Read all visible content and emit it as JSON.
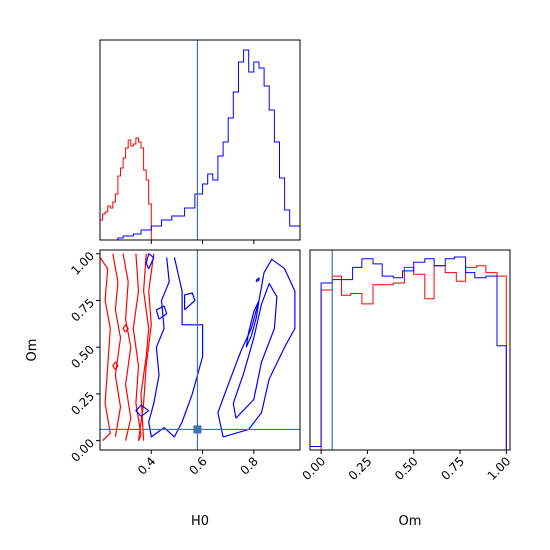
{
  "colors": {
    "series_a": "#ff0000",
    "series_b": "#0000ff",
    "truth": "#3b75af",
    "frame": "#000000"
  },
  "chart_data": [
    {
      "id": "H0-marginal",
      "type": "histogram",
      "xlabel": "",
      "ylabel": "",
      "xlim": [
        0.2,
        0.98
      ],
      "ylim": [
        0,
        1.0
      ],
      "y_ticks_visible": false,
      "truth_x": 0.58,
      "series": [
        {
          "color_key": "series_a",
          "bins": [
            [
              0.2,
              0.21,
              0.1
            ],
            [
              0.21,
              0.22,
              0.13
            ],
            [
              0.22,
              0.23,
              0.14
            ],
            [
              0.23,
              0.24,
              0.17
            ],
            [
              0.24,
              0.25,
              0.16
            ],
            [
              0.25,
              0.26,
              0.19
            ],
            [
              0.26,
              0.27,
              0.23
            ],
            [
              0.27,
              0.28,
              0.32
            ],
            [
              0.28,
              0.29,
              0.36
            ],
            [
              0.29,
              0.3,
              0.41
            ],
            [
              0.3,
              0.31,
              0.46
            ],
            [
              0.31,
              0.32,
              0.5
            ],
            [
              0.32,
              0.33,
              0.47
            ],
            [
              0.33,
              0.34,
              0.48
            ],
            [
              0.34,
              0.35,
              0.51
            ],
            [
              0.35,
              0.36,
              0.49
            ],
            [
              0.36,
              0.37,
              0.46
            ],
            [
              0.37,
              0.38,
              0.35
            ],
            [
              0.38,
              0.39,
              0.3
            ],
            [
              0.39,
              0.4,
              0.18
            ]
          ]
        },
        {
          "color_key": "series_b",
          "bins": [
            [
              0.27,
              0.29,
              0.01
            ],
            [
              0.29,
              0.33,
              0.02
            ],
            [
              0.33,
              0.36,
              0.03
            ],
            [
              0.36,
              0.4,
              0.05
            ],
            [
              0.4,
              0.44,
              0.07
            ],
            [
              0.44,
              0.48,
              0.1
            ],
            [
              0.48,
              0.53,
              0.12
            ],
            [
              0.53,
              0.57,
              0.16
            ],
            [
              0.57,
              0.6,
              0.23
            ],
            [
              0.6,
              0.62,
              0.28
            ],
            [
              0.62,
              0.64,
              0.33
            ],
            [
              0.64,
              0.66,
              0.3
            ],
            [
              0.66,
              0.68,
              0.42
            ],
            [
              0.68,
              0.7,
              0.49
            ],
            [
              0.7,
              0.72,
              0.61
            ],
            [
              0.72,
              0.74,
              0.74
            ],
            [
              0.74,
              0.76,
              0.89
            ],
            [
              0.76,
              0.78,
              0.95
            ],
            [
              0.78,
              0.8,
              0.84
            ],
            [
              0.8,
              0.82,
              0.89
            ],
            [
              0.82,
              0.84,
              0.86
            ],
            [
              0.84,
              0.86,
              0.77
            ],
            [
              0.86,
              0.88,
              0.65
            ],
            [
              0.88,
              0.9,
              0.49
            ],
            [
              0.9,
              0.92,
              0.31
            ],
            [
              0.92,
              0.94,
              0.15
            ],
            [
              0.94,
              0.98,
              0.07
            ]
          ]
        }
      ]
    },
    {
      "id": "H0-Om-joint",
      "type": "contour",
      "xlabel": "H0",
      "ylabel": "Om",
      "xlim": [
        0.2,
        0.98
      ],
      "ylim": [
        -0.05,
        1.02
      ],
      "x_ticks": [
        "0.4",
        "0.6",
        "0.8"
      ],
      "x_tick_values": [
        0.4,
        0.6,
        0.8
      ],
      "y_ticks": [
        "0.00",
        "0.25",
        "0.50",
        "0.75",
        "1.00"
      ],
      "y_tick_values": [
        0.0,
        0.25,
        0.5,
        0.75,
        1.0
      ],
      "truth_x": 0.58,
      "truth_y": 0.06,
      "series": [
        {
          "color_key": "series_a",
          "contours": [
            [
              [
                0.2,
                0.98
              ],
              [
                0.23,
                0.92
              ],
              [
                0.22,
                0.75
              ],
              [
                0.24,
                0.6
              ],
              [
                0.23,
                0.4
              ],
              [
                0.22,
                0.2
              ],
              [
                0.24,
                0.04
              ],
              [
                0.21,
                0.0
              ]
            ],
            [
              [
                0.25,
                1.0
              ],
              [
                0.27,
                0.85
              ],
              [
                0.26,
                0.7
              ],
              [
                0.28,
                0.55
              ],
              [
                0.26,
                0.35
              ],
              [
                0.28,
                0.18
              ],
              [
                0.26,
                0.02
              ]
            ],
            [
              [
                0.29,
                1.0
              ],
              [
                0.31,
                0.85
              ],
              [
                0.3,
                0.65
              ],
              [
                0.32,
                0.5
              ],
              [
                0.3,
                0.3
              ],
              [
                0.32,
                0.12
              ],
              [
                0.3,
                0.0
              ]
            ],
            [
              [
                0.34,
                1.0
              ],
              [
                0.35,
                0.8
              ],
              [
                0.33,
                0.6
              ],
              [
                0.35,
                0.4
              ],
              [
                0.34,
                0.2
              ],
              [
                0.36,
                0.03
              ],
              [
                0.35,
                0.0
              ]
            ],
            [
              [
                0.38,
                1.0
              ],
              [
                0.37,
                0.8
              ],
              [
                0.39,
                0.6
              ],
              [
                0.38,
                0.45
              ],
              [
                0.36,
                0.25
              ],
              [
                0.37,
                0.0
              ]
            ],
            [
              [
                0.41,
                1.0
              ],
              [
                0.39,
                0.8
              ],
              [
                0.4,
                0.62
              ],
              [
                0.38,
                0.4
              ],
              [
                0.37,
                0.2
              ],
              [
                0.35,
                0.0
              ]
            ],
            [
              [
                0.3,
                0.58
              ],
              [
                0.31,
                0.6
              ],
              [
                0.3,
                0.62
              ],
              [
                0.29,
                0.6
              ],
              [
                0.3,
                0.58
              ]
            ],
            [
              [
                0.26,
                0.38
              ],
              [
                0.27,
                0.4
              ],
              [
                0.26,
                0.42
              ],
              [
                0.25,
                0.4
              ],
              [
                0.26,
                0.38
              ]
            ]
          ]
        },
        {
          "color_key": "series_b",
          "contours": [
            [
              [
                0.46,
                0.98
              ],
              [
                0.47,
                0.85
              ],
              [
                0.44,
                0.75
              ],
              [
                0.45,
                0.6
              ],
              [
                0.42,
                0.5
              ],
              [
                0.43,
                0.35
              ],
              [
                0.41,
                0.2
              ],
              [
                0.39,
                0.1
              ],
              [
                0.4,
                0.02
              ],
              [
                0.45,
                0.07
              ],
              [
                0.49,
                0.02
              ],
              [
                0.52,
                0.1
              ],
              [
                0.56,
                0.25
              ],
              [
                0.6,
                0.45
              ],
              [
                0.6,
                0.62
              ],
              [
                0.52,
                0.62
              ],
              [
                0.52,
                0.8
              ],
              [
                0.49,
                0.98
              ]
            ],
            [
              [
                0.53,
                0.7
              ],
              [
                0.57,
                0.75
              ],
              [
                0.56,
                0.79
              ],
              [
                0.53,
                0.78
              ],
              [
                0.53,
                0.7
              ]
            ],
            [
              [
                0.43,
                0.65
              ],
              [
                0.46,
                0.68
              ],
              [
                0.45,
                0.72
              ],
              [
                0.42,
                0.7
              ],
              [
                0.43,
                0.65
              ]
            ],
            [
              [
                0.39,
                0.92
              ],
              [
                0.41,
                0.98
              ],
              [
                0.39,
                1.0
              ],
              [
                0.38,
                0.95
              ],
              [
                0.39,
                0.92
              ]
            ],
            [
              [
                0.36,
                0.13
              ],
              [
                0.39,
                0.16
              ],
              [
                0.36,
                0.19
              ],
              [
                0.34,
                0.16
              ],
              [
                0.36,
                0.13
              ]
            ],
            [
              [
                0.68,
                0.02
              ],
              [
                0.78,
                0.06
              ],
              [
                0.83,
                0.15
              ],
              [
                0.86,
                0.33
              ],
              [
                0.92,
                0.5
              ],
              [
                0.96,
                0.6
              ],
              [
                0.96,
                0.8
              ],
              [
                0.92,
                0.92
              ],
              [
                0.87,
                0.97
              ],
              [
                0.84,
                0.9
              ],
              [
                0.82,
                0.75
              ],
              [
                0.79,
                0.6
              ],
              [
                0.75,
                0.48
              ],
              [
                0.7,
                0.3
              ],
              [
                0.66,
                0.15
              ],
              [
                0.68,
                0.02
              ]
            ],
            [
              [
                0.73,
                0.12
              ],
              [
                0.8,
                0.22
              ],
              [
                0.83,
                0.42
              ],
              [
                0.88,
                0.6
              ],
              [
                0.89,
                0.77
              ],
              [
                0.86,
                0.84
              ],
              [
                0.83,
                0.73
              ],
              [
                0.8,
                0.55
              ],
              [
                0.76,
                0.36
              ],
              [
                0.72,
                0.2
              ],
              [
                0.73,
                0.12
              ]
            ],
            [
              [
                0.77,
                0.5
              ],
              [
                0.79,
                0.56
              ],
              [
                0.81,
                0.66
              ],
              [
                0.82,
                0.75
              ],
              [
                0.8,
                0.69
              ],
              [
                0.78,
                0.58
              ],
              [
                0.77,
                0.5
              ]
            ],
            [
              [
                0.81,
                0.85
              ],
              [
                0.82,
                0.86
              ],
              [
                0.82,
                0.87
              ],
              [
                0.81,
                0.86
              ],
              [
                0.81,
                0.85
              ]
            ]
          ]
        }
      ]
    },
    {
      "id": "Om-marginal",
      "type": "histogram",
      "xlabel": "Om",
      "ylabel": "",
      "xlim": [
        -0.06,
        1.02
      ],
      "ylim": [
        0,
        1.15
      ],
      "x_ticks": [
        "0.00",
        "0.25",
        "0.50",
        "0.75",
        "1.00"
      ],
      "x_tick_values": [
        0.0,
        0.25,
        0.5,
        0.75,
        1.0
      ],
      "y_ticks_visible": false,
      "truth_x": 0.06,
      "series": [
        {
          "color_key": "series_a",
          "bins": [
            [
              0.0,
              0.06,
              0.92
            ],
            [
              0.06,
              0.11,
              1.0
            ],
            [
              0.11,
              0.16,
              0.89
            ],
            [
              0.16,
              0.22,
              0.9
            ],
            [
              0.22,
              0.28,
              0.84
            ],
            [
              0.28,
              0.34,
              0.95
            ],
            [
              0.34,
              0.39,
              0.95
            ],
            [
              0.39,
              0.45,
              0.96
            ],
            [
              0.45,
              0.5,
              1.05
            ],
            [
              0.5,
              0.56,
              1.01
            ],
            [
              0.56,
              0.61,
              0.87
            ],
            [
              0.61,
              0.67,
              1.06
            ],
            [
              0.67,
              0.73,
              1.02
            ],
            [
              0.73,
              0.78,
              0.97
            ],
            [
              0.78,
              0.84,
              1.05
            ],
            [
              0.84,
              0.89,
              1.06
            ],
            [
              0.89,
              0.95,
              1.02
            ],
            [
              0.95,
              1.0,
              1.0
            ]
          ]
        },
        {
          "color_key": "series_b",
          "bins": [
            [
              -0.06,
              0.0,
              0.02
            ],
            [
              0.0,
              0.06,
              0.96
            ],
            [
              0.06,
              0.11,
              0.98
            ],
            [
              0.11,
              0.17,
              0.98
            ],
            [
              0.17,
              0.22,
              1.05
            ],
            [
              0.22,
              0.28,
              1.1
            ],
            [
              0.28,
              0.33,
              1.07
            ],
            [
              0.33,
              0.39,
              1.0
            ],
            [
              0.39,
              0.44,
              0.99
            ],
            [
              0.44,
              0.5,
              1.03
            ],
            [
              0.5,
              0.56,
              1.08
            ],
            [
              0.56,
              0.61,
              1.1
            ],
            [
              0.61,
              0.67,
              1.06
            ],
            [
              0.67,
              0.72,
              1.1
            ],
            [
              0.72,
              0.78,
              1.11
            ],
            [
              0.78,
              0.83,
              1.02
            ],
            [
              0.83,
              0.89,
              0.99
            ],
            [
              0.89,
              0.95,
              1.0
            ],
            [
              0.95,
              1.0,
              0.6
            ]
          ]
        }
      ]
    }
  ]
}
